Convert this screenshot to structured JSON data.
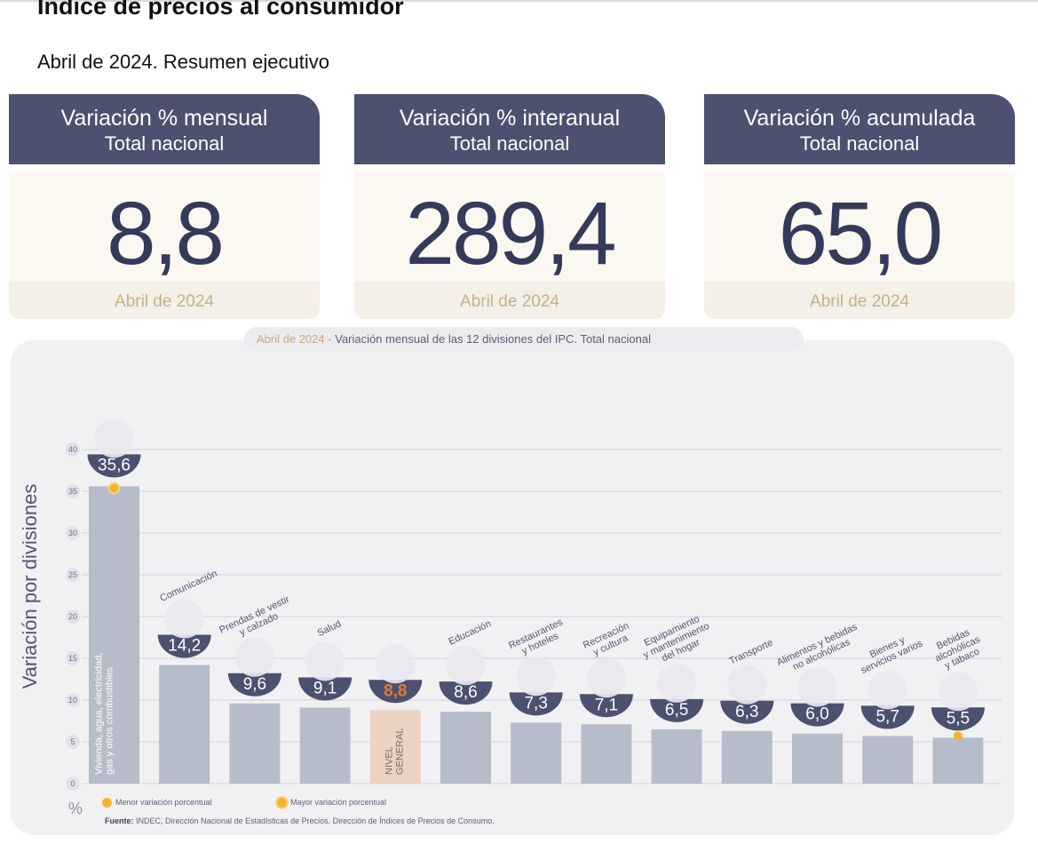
{
  "header": {
    "title": "Índice de precios al consumidor",
    "subtitle": "Abril de 2024. Resumen ejecutivo"
  },
  "cards": [
    {
      "title": "Variación % mensual",
      "scope": "Total nacional",
      "value": "8,8",
      "date": "Abril de 2024"
    },
    {
      "title": "Variación % interanual",
      "scope": "Total nacional",
      "value": "289,4",
      "date": "Abril de 2024"
    },
    {
      "title": "Variación % acumulada",
      "scope": "Total nacional",
      "value": "65,0",
      "date": "Abril de 2024"
    }
  ],
  "chart_title": {
    "date": "Abril de 2024",
    "separator": " - ",
    "text": "Variación mensual de las 12 divisiones del IPC. Total nacional"
  },
  "chart_data": {
    "type": "bar",
    "title": "Abril de 2024 - Variación mensual de las 12 divisiones del IPC. Total nacional",
    "ylabel": "Variación por divisiones",
    "yunit": "%",
    "ylim": [
      0,
      40
    ],
    "yticks": [
      0,
      5,
      10,
      15,
      20,
      25,
      30,
      35,
      40
    ],
    "grid": true,
    "categories": [
      "Vivienda, agua, electricidad, gas y otros combustibles",
      "Comunicación",
      "Prendas de vestir y calzado",
      "Salud",
      "Nivel general",
      "Educación",
      "Restaurantes y hoteles",
      "Recreación y cultura",
      "Equipamiento y mantenimiento del hogar",
      "Transporte",
      "Alimentos y bebidas no alcohólicas",
      "Bienes y servicios varios",
      "Bebidas alcohólicas y tabaco"
    ],
    "category_labels": [
      [
        "Vivienda, agua, electricidad,",
        "gas y otros combustibles"
      ],
      [
        "Comunicación"
      ],
      [
        "Prendas de vestir",
        "y calzado"
      ],
      [
        "Salud"
      ],
      [
        "NIVEL",
        "GENERAL"
      ],
      [
        "Educación"
      ],
      [
        "Restaurantes",
        "y hoteles"
      ],
      [
        "Recreación",
        "y cultura"
      ],
      [
        "Equipamiento",
        "y mantenimiento",
        "del hogar"
      ],
      [
        "Transporte"
      ],
      [
        "Alimentos y bebidas",
        "no alcohólicas"
      ],
      [
        "Bienes y",
        "servicios varios"
      ],
      [
        "Bebidas",
        "alcohólicas",
        "y tabaco"
      ]
    ],
    "values": [
      35.6,
      14.2,
      9.6,
      9.1,
      8.8,
      8.6,
      7.3,
      7.1,
      6.5,
      6.3,
      6.0,
      5.7,
      5.5
    ],
    "value_labels": [
      "35,6",
      "14,2",
      "9,6",
      "9,1",
      "8,8",
      "8,6",
      "7,3",
      "7,1",
      "6,5",
      "6,3",
      "6,0",
      "5,7",
      "5,5"
    ],
    "icons": [
      "house-utilities-icon",
      "phone-icon",
      "shirt-icon",
      "health-cross-icon",
      "shopping-basket-icon",
      "book-icon",
      "plate-cutlery-icon",
      "beach-umbrella-icon",
      "washing-machine-icon",
      "bus-icon",
      "groceries-icon",
      "comb-scissors-icon",
      "wine-bottle-icon"
    ],
    "highlight_index": 4,
    "max_index": 0,
    "min_index": 12,
    "colors": {
      "bar": "#b7bcca",
      "highlight_bar": "#ebd2c2",
      "highlight_text": "#e07b3c",
      "badge": "#4b516f",
      "grid": "#cfd1dc",
      "marker": "#f4b52c"
    }
  },
  "legend": {
    "min_label": "Menor variación porcentual",
    "max_label": "Mayor variación porcentual"
  },
  "source": {
    "label": "Fuente:",
    "text": "INDEC, Dirección Nacional de Estadísticas de Precios. Dirección de Índices de Precios de Consumo."
  }
}
